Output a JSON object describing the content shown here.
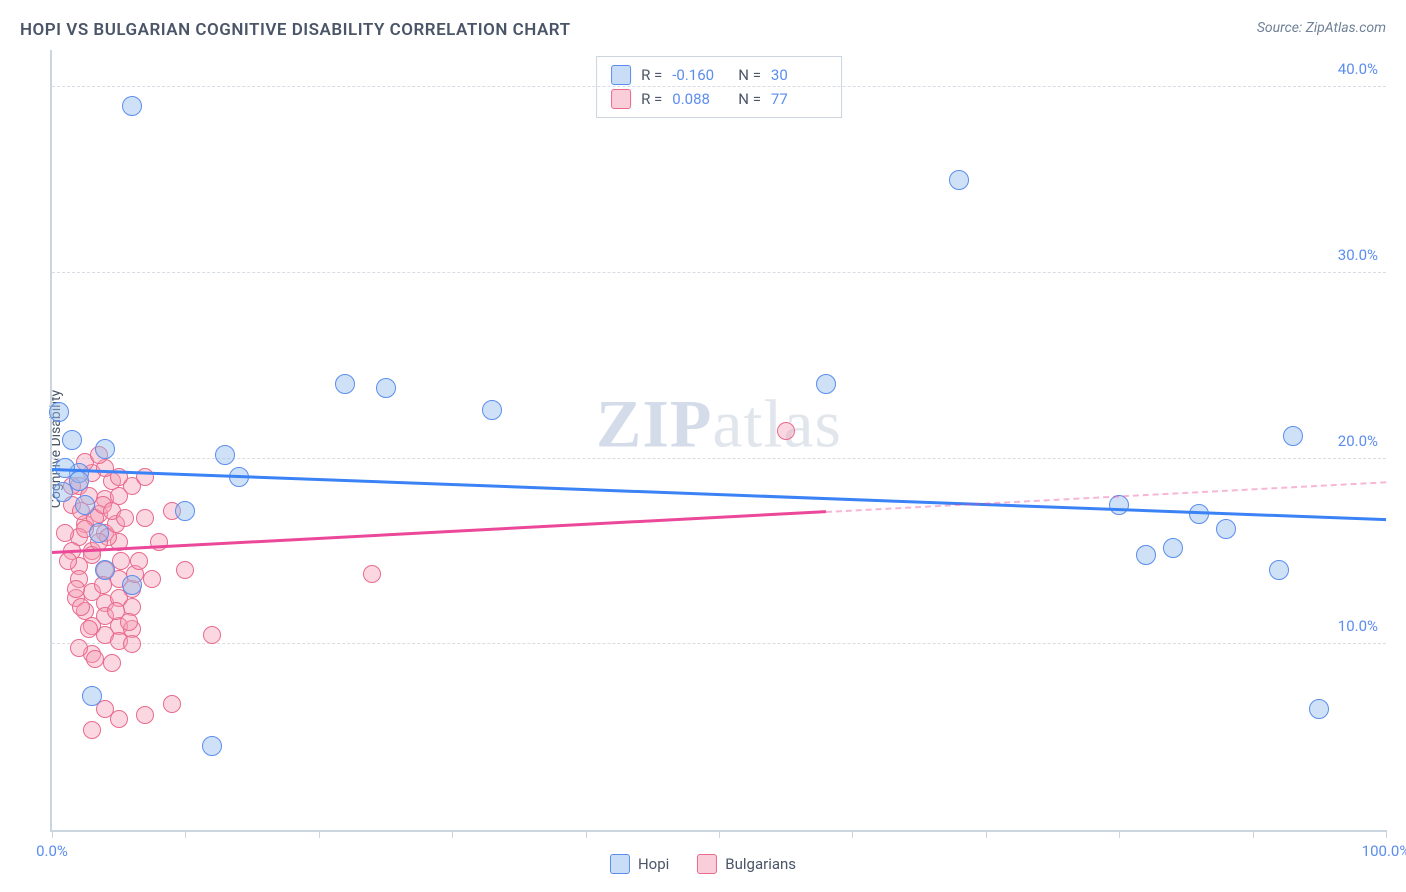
{
  "title": "HOPI VS BULGARIAN COGNITIVE DISABILITY CORRELATION CHART",
  "source": "Source: ZipAtlas.com",
  "y_axis_label": "Cognitive Disability",
  "watermark": {
    "bold": "ZIP",
    "rest": "atlas"
  },
  "chart": {
    "type": "scatter",
    "xlim": [
      0,
      100
    ],
    "ylim": [
      0,
      42
    ],
    "y_ticks": [
      10,
      20,
      30,
      40
    ],
    "y_tick_labels": [
      "10.0%",
      "20.0%",
      "30.0%",
      "40.0%"
    ],
    "x_ticks": [
      0,
      10,
      20,
      30,
      40,
      50,
      60,
      70,
      80,
      90,
      100
    ],
    "x_tick_labels": {
      "0": "0.0%",
      "100": "100.0%"
    },
    "background_color": "#ffffff",
    "grid_color": "#d8dde4",
    "axis_color": "#cbd5e0",
    "colors": {
      "hopi_fill": "rgba(147,189,237,0.45)",
      "hopi_stroke": "#5b8def",
      "bulg_fill": "rgba(244,157,179,0.4)",
      "bulg_stroke": "#e96a8d",
      "hopi_line": "#3b82f6",
      "bulg_line": "#ec4899",
      "tick_label": "#5b8def"
    },
    "marker_radius_hopi": 10,
    "marker_radius_bulg": 9,
    "series": {
      "hopi": {
        "label": "Hopi",
        "R": "-0.160",
        "N": "30",
        "trend": {
          "x1": 0,
          "y1": 19.5,
          "x2": 100,
          "y2": 16.8
        },
        "points": [
          [
            6,
            39
          ],
          [
            0.5,
            22.5
          ],
          [
            2,
            19.2
          ],
          [
            4,
            20.5
          ],
          [
            13,
            20.2
          ],
          [
            14,
            19.0
          ],
          [
            10,
            17.2
          ],
          [
            22,
            24.0
          ],
          [
            25,
            23.8
          ],
          [
            33,
            22.6
          ],
          [
            3,
            7.2
          ],
          [
            12,
            4.5
          ],
          [
            4,
            14.0
          ],
          [
            6,
            13.2
          ],
          [
            2,
            18.8
          ],
          [
            1,
            19.5
          ],
          [
            58,
            24.0
          ],
          [
            68,
            35.0
          ],
          [
            80,
            17.5
          ],
          [
            82,
            14.8
          ],
          [
            84,
            15.2
          ],
          [
            86,
            17.0
          ],
          [
            88,
            16.2
          ],
          [
            92,
            14.0
          ],
          [
            93,
            21.2
          ],
          [
            95,
            6.5
          ],
          [
            1.5,
            21.0
          ],
          [
            3.5,
            16.0
          ],
          [
            0.8,
            18.2
          ],
          [
            2.5,
            17.5
          ]
        ]
      },
      "bulg": {
        "label": "Bulgarians",
        "R": "0.088",
        "N": "77",
        "trend_solid": {
          "x1": 0,
          "y1": 15.0,
          "x2": 58,
          "y2": 17.2
        },
        "trend_dashed": {
          "x1": 58,
          "y1": 17.2,
          "x2": 100,
          "y2": 18.8
        },
        "points": [
          [
            2,
            18.5
          ],
          [
            3,
            19.2
          ],
          [
            4,
            17.8
          ],
          [
            5,
            18.0
          ],
          [
            2.5,
            16.5
          ],
          [
            3.5,
            17.0
          ],
          [
            1.5,
            17.5
          ],
          [
            2,
            15.8
          ],
          [
            3,
            15.0
          ],
          [
            4,
            16.0
          ],
          [
            5,
            15.5
          ],
          [
            2,
            14.2
          ],
          [
            3,
            14.8
          ],
          [
            4,
            14.0
          ],
          [
            5,
            13.5
          ],
          [
            6,
            13.0
          ],
          [
            3,
            12.8
          ],
          [
            4,
            12.2
          ],
          [
            5,
            12.5
          ],
          [
            6,
            12.0
          ],
          [
            4,
            11.5
          ],
          [
            5,
            11.0
          ],
          [
            6,
            10.8
          ],
          [
            4,
            10.5
          ],
          [
            5,
            10.2
          ],
          [
            6,
            10.0
          ],
          [
            3,
            9.5
          ],
          [
            4,
            6.5
          ],
          [
            5,
            6.0
          ],
          [
            7,
            6.2
          ],
          [
            9,
            6.8
          ],
          [
            3,
            5.4
          ],
          [
            12,
            10.5
          ],
          [
            7,
            16.8
          ],
          [
            8,
            15.5
          ],
          [
            9,
            17.2
          ],
          [
            6,
            18.5
          ],
          [
            7,
            19.0
          ],
          [
            4.5,
            18.8
          ],
          [
            1,
            16.0
          ],
          [
            1.5,
            15.0
          ],
          [
            2,
            13.5
          ],
          [
            1.8,
            12.5
          ],
          [
            2.5,
            11.8
          ],
          [
            3,
            11.0
          ],
          [
            2,
            9.8
          ],
          [
            2.5,
            19.8
          ],
          [
            4,
            19.5
          ],
          [
            5,
            19.0
          ],
          [
            3.5,
            20.2
          ],
          [
            24,
            13.8
          ],
          [
            10,
            14.0
          ],
          [
            55,
            21.5
          ],
          [
            2.2,
            17.2
          ],
          [
            3.2,
            16.8
          ],
          [
            4.2,
            15.8
          ],
          [
            5.2,
            14.5
          ],
          [
            6.2,
            13.8
          ],
          [
            3.8,
            13.2
          ],
          [
            4.8,
            11.8
          ],
          [
            5.8,
            11.2
          ],
          [
            2.8,
            18.0
          ],
          [
            3.8,
            17.5
          ],
          [
            4.8,
            16.5
          ],
          [
            1.2,
            14.5
          ],
          [
            1.8,
            13.0
          ],
          [
            2.2,
            12.0
          ],
          [
            2.8,
            10.8
          ],
          [
            3.2,
            9.2
          ],
          [
            4.5,
            9.0
          ],
          [
            1.5,
            18.5
          ],
          [
            2.5,
            16.2
          ],
          [
            3.5,
            15.5
          ],
          [
            4.5,
            17.2
          ],
          [
            5.5,
            16.8
          ],
          [
            6.5,
            14.5
          ],
          [
            7.5,
            13.5
          ]
        ]
      }
    }
  },
  "legend_labels": {
    "R": "R =",
    "N": "N ="
  },
  "bottom_legend": [
    "Hopi",
    "Bulgarians"
  ]
}
